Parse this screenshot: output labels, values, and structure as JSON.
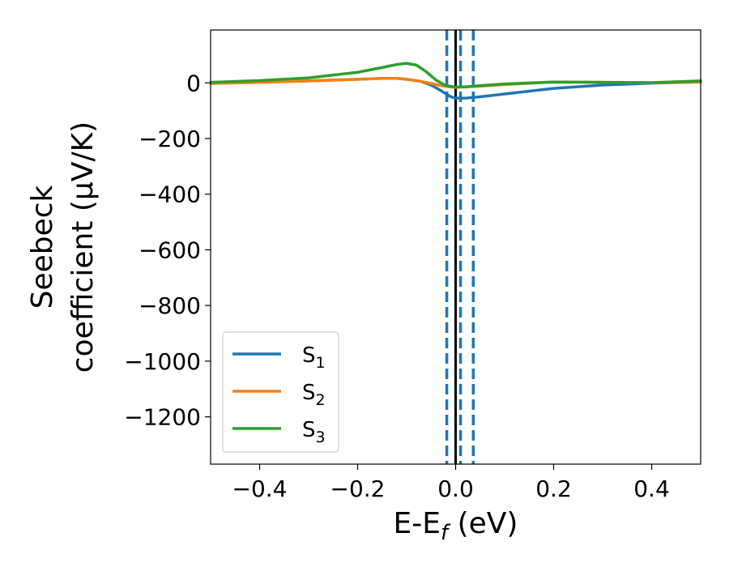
{
  "chart_data": {
    "type": "line",
    "xlabel": {
      "base": "E-E",
      "sub": "f",
      "unit": " (eV)"
    },
    "ylabel": {
      "line1": "Seebeck",
      "line2": "coefficient  (μV/K)"
    },
    "xlim": [
      -0.5,
      0.5
    ],
    "ylim": [
      -1370,
      190
    ],
    "x_ticks": [
      -0.4,
      -0.2,
      0.0,
      0.2,
      0.4
    ],
    "x_tick_labels": [
      "−0.4",
      "−0.2",
      "0.0",
      "0.2",
      "0.4"
    ],
    "y_ticks": [
      0,
      -200,
      -400,
      -600,
      -800,
      -1000,
      -1200
    ],
    "y_tick_labels": [
      "0",
      "−200",
      "−400",
      "−600",
      "−800",
      "−1000",
      "−1200"
    ],
    "legend_position": "lower-left",
    "grid": false,
    "series": [
      {
        "name": "S",
        "name_sub": "1",
        "color": "#1f77b4",
        "x": [
          -0.5,
          -0.4,
          -0.3,
          -0.2,
          -0.15,
          -0.12,
          -0.1,
          -0.07,
          -0.05,
          -0.03,
          -0.01,
          0.0,
          0.02,
          0.05,
          0.1,
          0.2,
          0.3,
          0.4,
          0.5
        ],
        "y": [
          -2,
          2,
          7,
          13,
          16,
          16,
          13,
          5,
          -8,
          -28,
          -50,
          -55,
          -55,
          -50,
          -40,
          -20,
          -8,
          -1,
          3
        ]
      },
      {
        "name": "S",
        "name_sub": "2",
        "color": "#ff7f0e",
        "x": [
          -0.5,
          -0.4,
          -0.3,
          -0.2,
          -0.15,
          -0.12,
          -0.1,
          -0.07,
          -0.05,
          -0.03,
          -0.01,
          0.0,
          0.02,
          0.05,
          0.1,
          0.2,
          0.3,
          0.4,
          0.5
        ],
        "y": [
          -2,
          2,
          7,
          13,
          16,
          16,
          13,
          5,
          -2,
          -10,
          -15,
          -16,
          -15,
          -12,
          -6,
          3,
          2,
          0,
          3
        ]
      },
      {
        "name": "S",
        "name_sub": "3",
        "color": "#2ca02c",
        "x": [
          -0.5,
          -0.4,
          -0.3,
          -0.2,
          -0.15,
          -0.12,
          -0.1,
          -0.08,
          -0.06,
          -0.04,
          -0.02,
          0.0,
          0.02,
          0.05,
          0.1,
          0.2,
          0.3,
          0.4,
          0.5
        ],
        "y": [
          2,
          8,
          18,
          38,
          55,
          66,
          70,
          64,
          40,
          10,
          -10,
          -15,
          -14,
          -10,
          -4,
          3,
          2,
          1,
          7
        ]
      }
    ],
    "vlines": [
      {
        "x": -0.018,
        "style": "dashed",
        "color": "#1f77b4"
      },
      {
        "x": 0.0,
        "style": "solid",
        "color": "#000000"
      },
      {
        "x": 0.01,
        "style": "dashed",
        "color": "#1f77b4"
      },
      {
        "x": 0.036,
        "style": "dashed",
        "color": "#1f77b4"
      }
    ]
  }
}
